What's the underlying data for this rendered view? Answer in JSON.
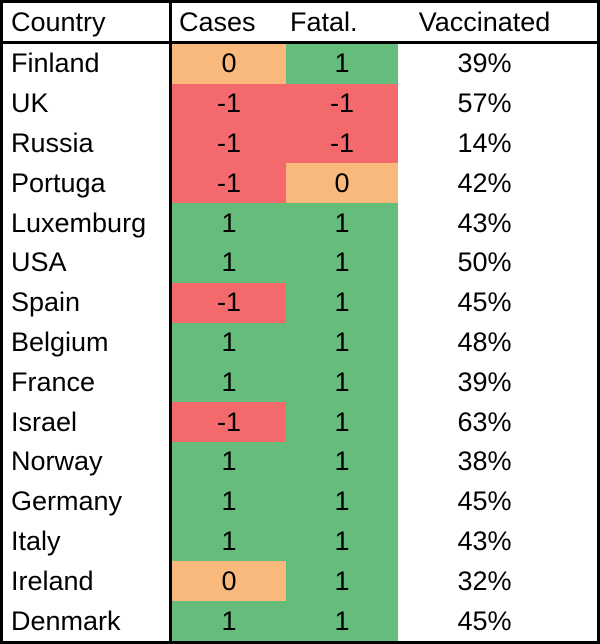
{
  "table": {
    "headers": {
      "country": "Country",
      "cases": "Cases",
      "fatalities": "Fatal.",
      "vaccinated": "Vaccinated"
    },
    "rows": [
      {
        "country": "Finland",
        "cases": 0,
        "fatalities": 1,
        "vaccinated": "39%"
      },
      {
        "country": "UK",
        "cases": -1,
        "fatalities": -1,
        "vaccinated": "57%"
      },
      {
        "country": "Russia",
        "cases": -1,
        "fatalities": -1,
        "vaccinated": "14%"
      },
      {
        "country": "Portuga",
        "cases": -1,
        "fatalities": 0,
        "vaccinated": "42%"
      },
      {
        "country": "Luxemburg",
        "cases": 1,
        "fatalities": 1,
        "vaccinated": "43%"
      },
      {
        "country": "USA",
        "cases": 1,
        "fatalities": 1,
        "vaccinated": "50%"
      },
      {
        "country": "Spain",
        "cases": -1,
        "fatalities": 1,
        "vaccinated": "45%"
      },
      {
        "country": "Belgium",
        "cases": 1,
        "fatalities": 1,
        "vaccinated": "48%"
      },
      {
        "country": "France",
        "cases": 1,
        "fatalities": 1,
        "vaccinated": "39%"
      },
      {
        "country": "Israel",
        "cases": -1,
        "fatalities": 1,
        "vaccinated": "63%"
      },
      {
        "country": "Norway",
        "cases": 1,
        "fatalities": 1,
        "vaccinated": "38%"
      },
      {
        "country": "Germany",
        "cases": 1,
        "fatalities": 1,
        "vaccinated": "45%"
      },
      {
        "country": "Italy",
        "cases": 1,
        "fatalities": 1,
        "vaccinated": "43%"
      },
      {
        "country": "Ireland",
        "cases": 0,
        "fatalities": 1,
        "vaccinated": "32%"
      },
      {
        "country": "Denmark",
        "cases": 1,
        "fatalities": 1,
        "vaccinated": "45%"
      }
    ]
  },
  "colors": {
    "negative": "#F4696B",
    "zero": "#F9B97C",
    "positive": "#66BD7B",
    "border": "#000000",
    "background": "#FFFFFF"
  },
  "chart_data": {
    "type": "table",
    "title": "Country COVID status table with conditional formatting",
    "columns": [
      "Country",
      "Cases",
      "Fatal.",
      "Vaccinated"
    ],
    "rows": [
      [
        "Finland",
        0,
        1,
        "39%"
      ],
      [
        "UK",
        -1,
        -1,
        "57%"
      ],
      [
        "Russia",
        -1,
        -1,
        "14%"
      ],
      [
        "Portuga",
        -1,
        0,
        "42%"
      ],
      [
        "Luxemburg",
        1,
        1,
        "43%"
      ],
      [
        "USA",
        1,
        1,
        "50%"
      ],
      [
        "Spain",
        -1,
        1,
        "45%"
      ],
      [
        "Belgium",
        1,
        1,
        "48%"
      ],
      [
        "France",
        1,
        1,
        "39%"
      ],
      [
        "Israel",
        -1,
        1,
        "63%"
      ],
      [
        "Norway",
        1,
        1,
        "38%"
      ],
      [
        "Germany",
        1,
        1,
        "45%"
      ],
      [
        "Italy",
        1,
        1,
        "43%"
      ],
      [
        "Ireland",
        0,
        1,
        "32%"
      ],
      [
        "Denmark",
        1,
        1,
        "45%"
      ]
    ],
    "color_coding": {
      "-1": "#F4696B",
      "0": "#F9B97C",
      "1": "#66BD7B"
    },
    "legend_position": "none",
    "grid": "outer-border, header separator, country column separator"
  }
}
